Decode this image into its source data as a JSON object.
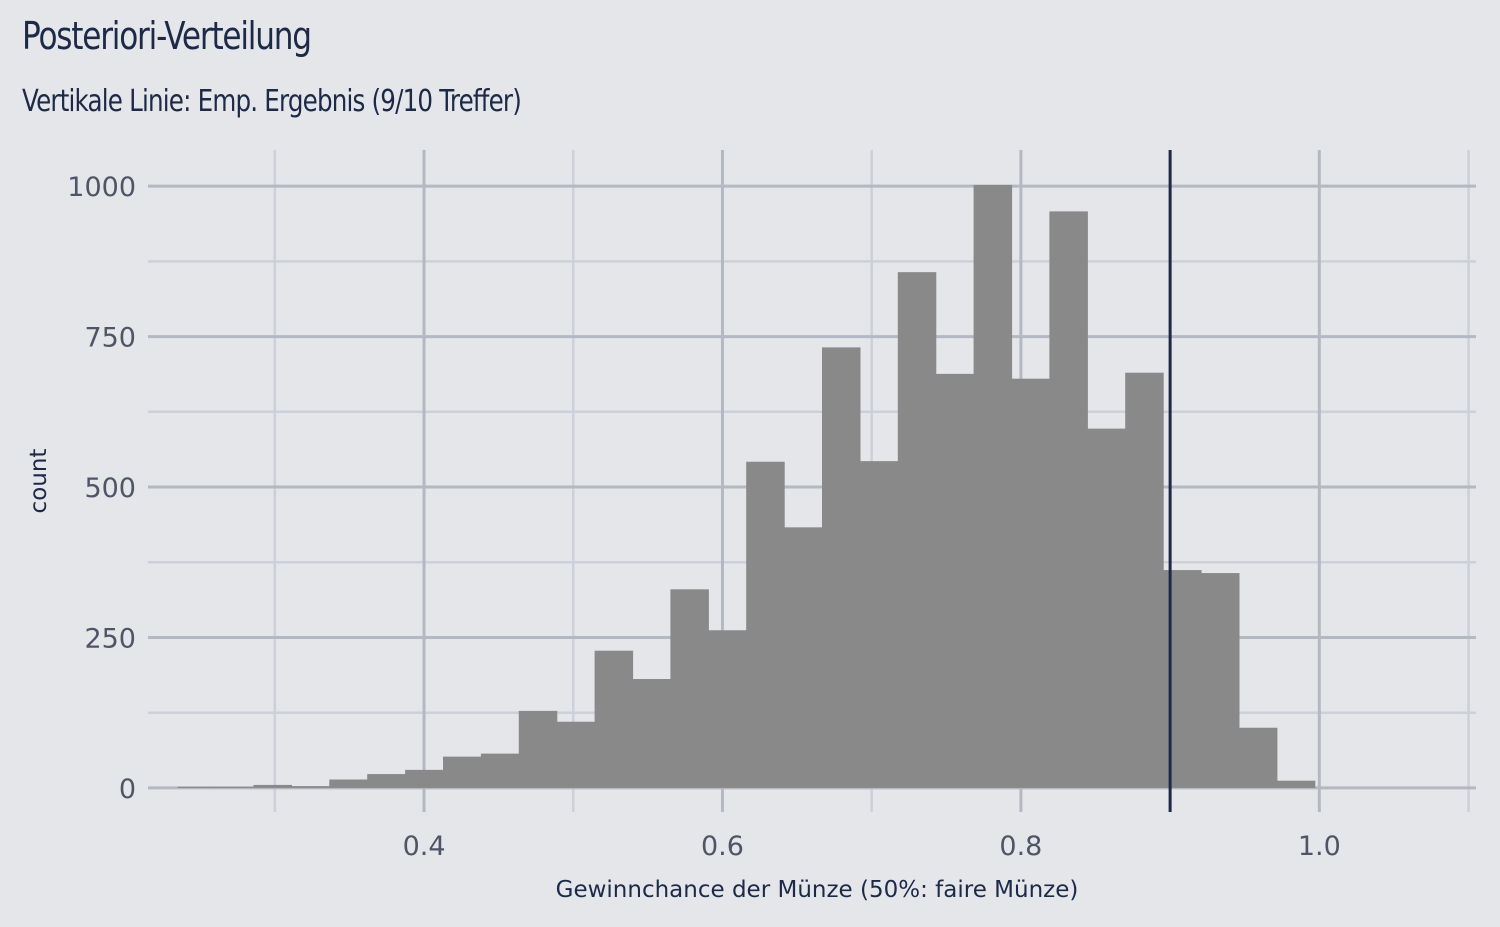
{
  "chart_data": {
    "type": "bar",
    "title": "Posteriori-Verteilung",
    "subtitle": "Vertikale Linie: Emp. Ergebnis (9/10 Treffer)",
    "xlabel": "Gewinnchance der Münze (50%: faire Münze)",
    "ylabel": "count",
    "xlim": [
      0.215,
      1.105
    ],
    "ylim": [
      -40,
      1060
    ],
    "x_ticks": [
      0.4,
      0.6,
      0.8,
      1.0
    ],
    "x_tick_labels": [
      "0.4",
      "0.6",
      "0.8",
      "1.0"
    ],
    "y_ticks": [
      0,
      250,
      500,
      750,
      1000
    ],
    "y_tick_labels": [
      "0",
      "250",
      "500",
      "750",
      "1000"
    ],
    "bin_width": 0.0254,
    "bin_starts": [
      0.2349,
      0.2603,
      0.2857,
      0.3111,
      0.3365,
      0.3619,
      0.3873,
      0.4127,
      0.4381,
      0.4635,
      0.4889,
      0.5143,
      0.5397,
      0.5651,
      0.5905,
      0.6159,
      0.6413,
      0.6667,
      0.6921,
      0.7175,
      0.7429,
      0.7683,
      0.7937,
      0.8191,
      0.8445,
      0.8699,
      0.8953,
      0.9207,
      0.9461,
      0.9715
    ],
    "values": [
      2,
      2,
      5,
      3,
      14,
      23,
      30,
      52,
      57,
      128,
      110,
      228,
      181,
      330,
      262,
      542,
      433,
      732,
      543,
      857,
      688,
      1002,
      680,
      958,
      597,
      690,
      362,
      357,
      100,
      12
    ],
    "vline": 0.9,
    "bar_color": "#898989",
    "vline_color": "#1c2a48",
    "grid": true,
    "legend": "none"
  }
}
